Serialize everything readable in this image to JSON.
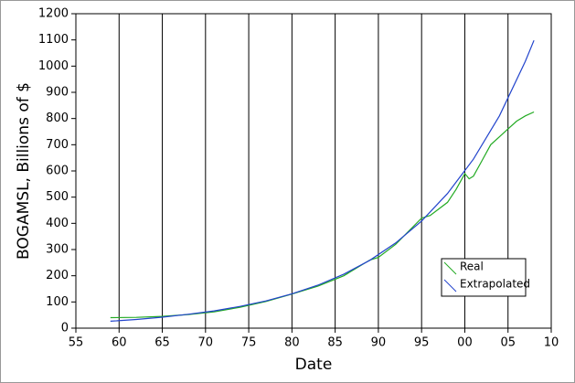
{
  "chart_data": {
    "type": "line",
    "x_label": "Date",
    "y_label": "BOGAMSL, Billions of $",
    "xlim": [
      55,
      110
    ],
    "xticks": [
      55,
      60,
      65,
      70,
      75,
      80,
      85,
      90,
      95,
      {
        "value": 100,
        "label": "00"
      },
      {
        "value": 105,
        "label": "05"
      },
      {
        "value": 110,
        "label": "10"
      }
    ],
    "ylim": [
      0,
      1200
    ],
    "yticks": [
      0,
      100,
      200,
      300,
      400,
      500,
      600,
      700,
      800,
      900,
      1000,
      1100,
      1200
    ],
    "grid": "vertical",
    "legend": "lower right",
    "series": [
      {
        "name": "Real",
        "color": "#22aa22",
        "x": [
          59,
          62,
          65,
          68,
          71,
          74,
          77,
          80,
          83,
          86,
          89,
          90,
          92,
          95,
          96,
          98,
          99,
          100,
          100.5,
          101,
          102,
          103,
          104,
          105,
          106,
          107,
          108
        ],
        "values": [
          40,
          41,
          45,
          52,
          62,
          80,
          102,
          130,
          160,
          200,
          260,
          270,
          320,
          420,
          430,
          480,
          530,
          590,
          570,
          580,
          640,
          700,
          730,
          760,
          790,
          810,
          825
        ]
      },
      {
        "name": "Extrapolated",
        "color": "#2244cc",
        "x": [
          59,
          62,
          65,
          68,
          71,
          74,
          77,
          80,
          83,
          86,
          89,
          92,
          95,
          98,
          101,
          104,
          107,
          108
        ],
        "values": [
          26.5,
          33,
          42,
          53,
          66,
          83,
          104,
          131,
          164,
          206,
          259,
          325,
          409,
          514,
          645,
          810,
          1018,
          1098
        ]
      }
    ]
  }
}
